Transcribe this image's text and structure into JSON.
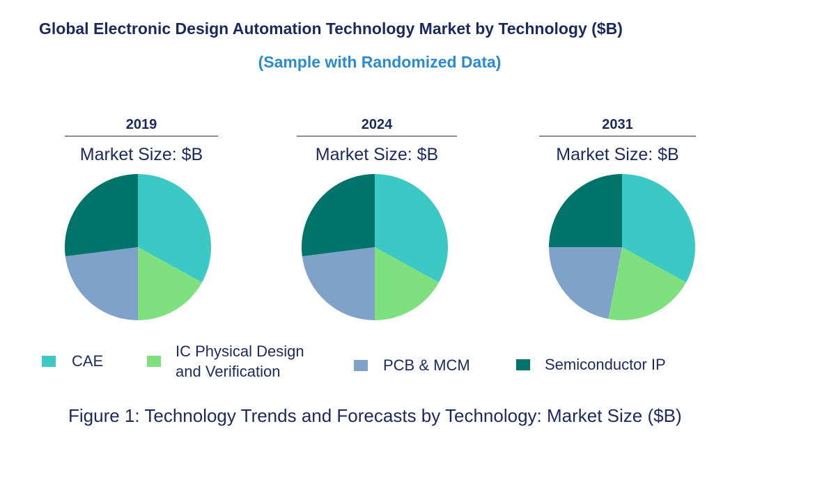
{
  "title": "Global Electronic Design Automation Technology Market by Technology ($B)",
  "subtitle": "(Sample with Randomized Data)",
  "caption": "Figure 1: Technology Trends and Forecasts by Technology: Market Size ($B)",
  "colors": {
    "CAE": "#3cc8c4",
    "IC Physical Design and Verification": "#7ee07e",
    "PCB & MCM": "#7fa3c8",
    "Semiconductor IP": "#00736b"
  },
  "legend": [
    {
      "label": "CAE",
      "color": "#3cc8c4"
    },
    {
      "label": "IC Physical Design\n and Verification",
      "color": "#7ee07e"
    },
    {
      "label": "PCB & MCM",
      "color": "#7fa3c8"
    },
    {
      "label": "Semiconductor IP",
      "color": "#00736b"
    }
  ],
  "chart_data": [
    {
      "type": "pie",
      "title": "2019",
      "subtitle": "Market Size: $B",
      "categories": [
        "CAE",
        "IC Physical Design and Verification",
        "PCB & MCM",
        "Semiconductor IP"
      ],
      "values": [
        33,
        17,
        23,
        27
      ]
    },
    {
      "type": "pie",
      "title": "2024",
      "subtitle": "Market Size: $B",
      "categories": [
        "CAE",
        "IC Physical Design and Verification",
        "PCB & MCM",
        "Semiconductor IP"
      ],
      "values": [
        33,
        17,
        23,
        27
      ]
    },
    {
      "type": "pie",
      "title": "2031",
      "subtitle": "Market Size: $B",
      "categories": [
        "CAE",
        "IC Physical Design and Verification",
        "PCB & MCM",
        "Semiconductor IP"
      ],
      "values": [
        33,
        20,
        22,
        25
      ]
    }
  ]
}
